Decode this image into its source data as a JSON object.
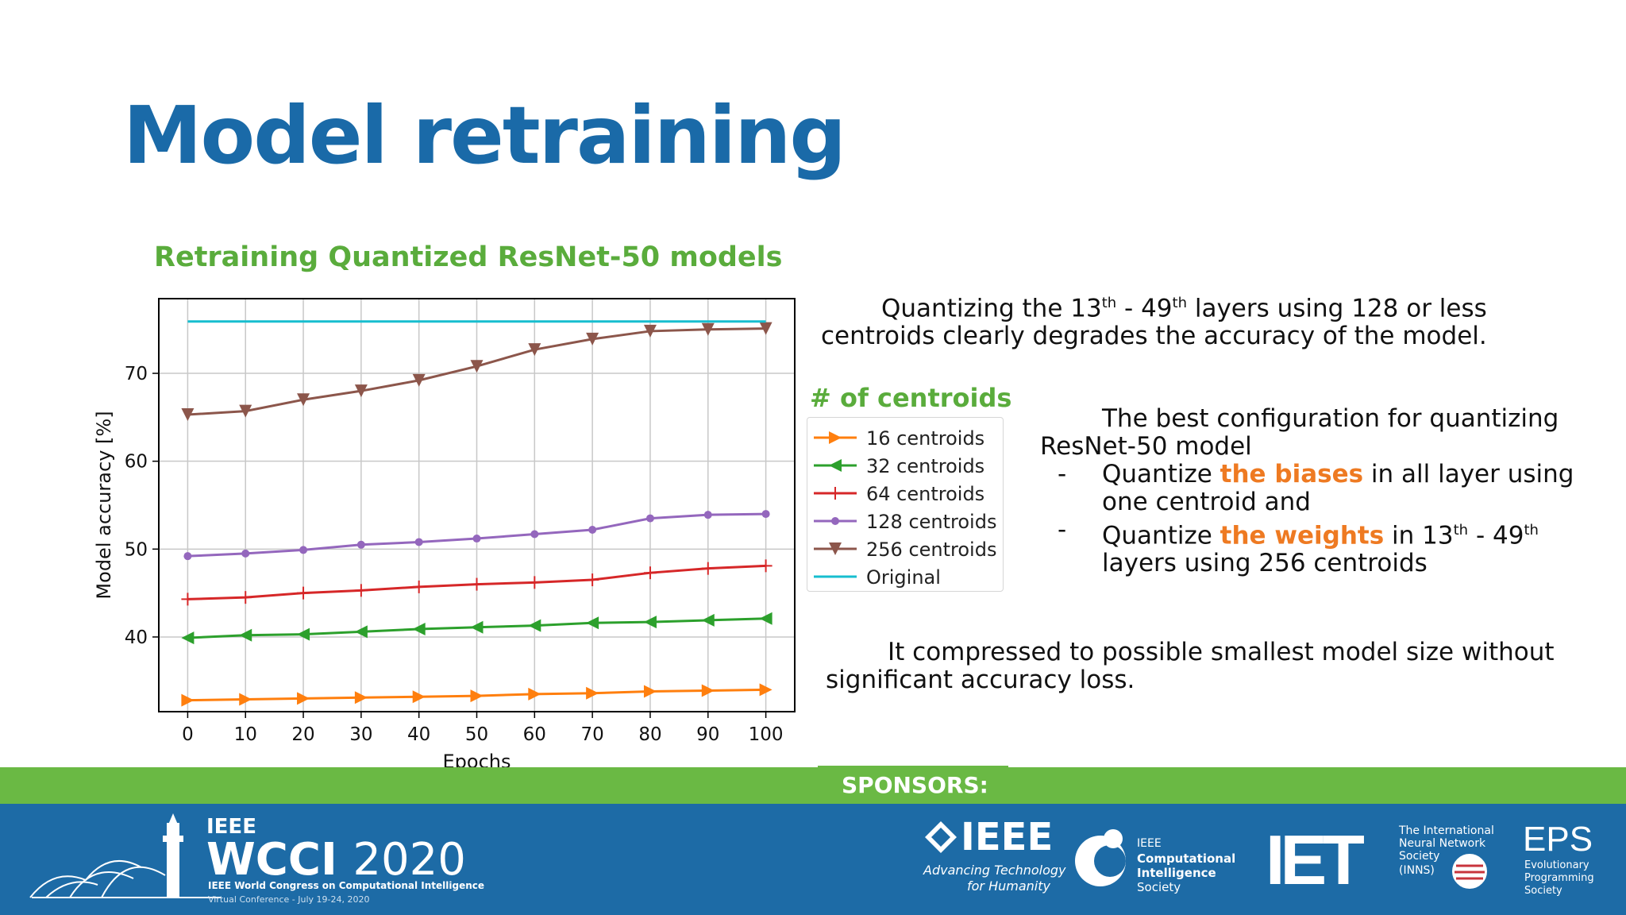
{
  "slide": {
    "title": "Model retraining",
    "chart_heading": "Retraining Quantized ResNet-50 models"
  },
  "chart_data": {
    "type": "line",
    "xlabel": "Epochs",
    "ylabel": "Model accuracy [%]",
    "x": [
      0,
      10,
      20,
      30,
      40,
      50,
      60,
      70,
      80,
      90,
      100
    ],
    "xticks": [
      "0",
      "10",
      "20",
      "30",
      "40",
      "50",
      "60",
      "70",
      "80",
      "90",
      "100"
    ],
    "yticks": [
      "40",
      "50",
      "60",
      "70"
    ],
    "xlim": [
      -5,
      105
    ],
    "ylim": [
      31.5,
      78.5
    ],
    "grid": true,
    "legend_title": "# of centroids",
    "series": [
      {
        "name": "16 centroids",
        "color": "#ff7f0e",
        "marker": "triangle-right",
        "values": [
          32.8,
          32.9,
          33.0,
          33.1,
          33.2,
          33.3,
          33.5,
          33.6,
          33.8,
          33.9,
          34.0
        ]
      },
      {
        "name": "32 centroids",
        "color": "#2ca02c",
        "marker": "triangle-left",
        "values": [
          39.9,
          40.2,
          40.3,
          40.6,
          40.9,
          41.1,
          41.3,
          41.6,
          41.7,
          41.9,
          42.1
        ]
      },
      {
        "name": "64 centroids",
        "color": "#d62728",
        "marker": "plus",
        "values": [
          44.3,
          44.5,
          45.0,
          45.3,
          45.7,
          46.0,
          46.2,
          46.5,
          47.3,
          47.8,
          48.1
        ]
      },
      {
        "name": "128 centroids",
        "color": "#9467bd",
        "marker": "circle",
        "values": [
          49.2,
          49.5,
          49.9,
          50.5,
          50.8,
          51.2,
          51.7,
          52.2,
          53.5,
          53.9,
          54.0
        ]
      },
      {
        "name": "256 centroids",
        "color": "#8c564b",
        "marker": "triangle-down",
        "values": [
          65.3,
          65.7,
          67.0,
          68.0,
          69.2,
          70.8,
          72.7,
          73.9,
          74.8,
          75.0,
          75.1
        ]
      },
      {
        "name": "Original",
        "color": "#17becf",
        "marker": "none",
        "values": [
          75.9,
          75.9,
          75.9,
          75.9,
          75.9,
          75.9,
          75.9,
          75.9,
          75.9,
          75.9,
          75.9
        ]
      }
    ]
  },
  "notes": {
    "p1": {
      "a": "Quantizing the 13",
      "sup1": "th",
      "b": " - 49",
      "sup2": "th",
      "c": " layers using 128 or less",
      "d": "centroids clearly degrades the accuracy of the model."
    },
    "p2": {
      "line1": "The best configuration for quantizing",
      "line2": "ResNet-50 model",
      "dash": "-",
      "b1_pre": "Quantize ",
      "b1_hl": "the biases",
      "b1_post": " in all layer using",
      "b1_line2": "one centroid and",
      "b2_pre": "Quantize ",
      "b2_hl": "the weights",
      "b2_mid": " in 13",
      "b2_sup1": "th",
      "b2_mid2": " - 49",
      "b2_sup2": "th",
      "b2_line2": "layers using 256 centroids"
    },
    "p3": {
      "line1": "It compressed to possible smallest model size without",
      "line2": "significant accuracy loss."
    }
  },
  "footer": {
    "sponsors_label": "SPONSORS:",
    "wcci_ieee": "IEEE",
    "wcci_name": "WCCI",
    "wcci_year": "2020",
    "wcci_subtitle": "IEEE World Congress on Computational Intelligence",
    "wcci_dates": "Virtual Conference - July 19-24, 2020",
    "ieee_name": "IEEE",
    "ieee_tag1": "Advancing Technology",
    "ieee_tag2": "for Humanity",
    "cis_1": "IEEE",
    "cis_2": "Computational",
    "cis_3": "Intelligence",
    "cis_4": "Society",
    "iet": "IET",
    "inns_1": "The International",
    "inns_2": "Neural Network",
    "inns_3": "Society",
    "inns_4": "(INNS)",
    "eps_1": "EPS",
    "eps_2": "Evolutionary",
    "eps_3": "Programming",
    "eps_4": "Society"
  }
}
